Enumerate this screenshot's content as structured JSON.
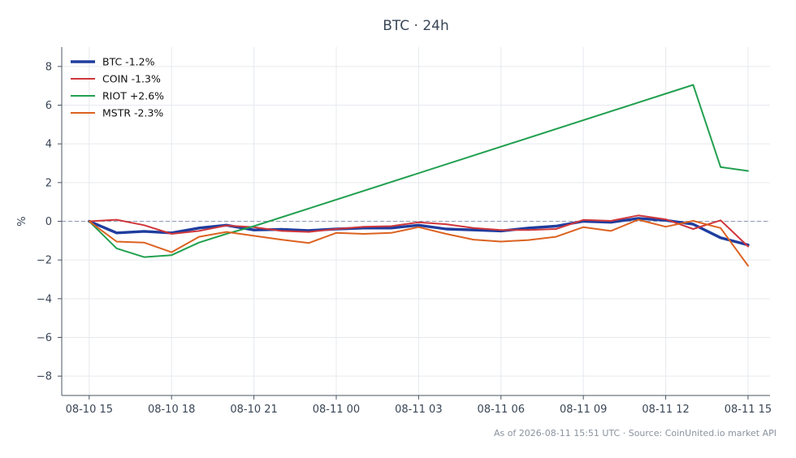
{
  "chart_data": {
    "type": "line",
    "title": "BTC · 24h",
    "ylabel": "%",
    "xlabel": "",
    "ylim": [
      -9,
      9
    ],
    "yticks": [
      -8,
      -6,
      -4,
      -2,
      0,
      2,
      4,
      6,
      8
    ],
    "ytick_labels": [
      "−8",
      "−6",
      "−4",
      "−2",
      "0",
      "2",
      "4",
      "6",
      "8"
    ],
    "x_range_hours": [
      -1,
      24.8
    ],
    "xticks": [
      {
        "h": 0,
        "label": "08-10 15"
      },
      {
        "h": 3,
        "label": "08-10 18"
      },
      {
        "h": 6,
        "label": "08-10 21"
      },
      {
        "h": 9,
        "label": "08-11 00"
      },
      {
        "h": 12,
        "label": "08-11 03"
      },
      {
        "h": 15,
        "label": "08-11 06"
      },
      {
        "h": 18,
        "label": "08-11 09"
      },
      {
        "h": 21,
        "label": "08-11 12"
      },
      {
        "h": 24,
        "label": "08-11 15"
      }
    ],
    "grid": true,
    "reference_line": {
      "y": 0,
      "style": "dashed",
      "color": "#8a9ab0"
    },
    "legend_position": "top-left",
    "series": [
      {
        "name": "BTC -1.2%",
        "color": "#1f3d9e",
        "width": 3.4,
        "points": [
          [
            0,
            0
          ],
          [
            1,
            -0.6
          ],
          [
            2,
            -0.52
          ],
          [
            3,
            -0.6
          ],
          [
            4,
            -0.35
          ],
          [
            5,
            -0.2
          ],
          [
            6,
            -0.45
          ],
          [
            7,
            -0.42
          ],
          [
            8,
            -0.48
          ],
          [
            9,
            -0.4
          ],
          [
            10,
            -0.35
          ],
          [
            11,
            -0.35
          ],
          [
            12,
            -0.2
          ],
          [
            13,
            -0.4
          ],
          [
            14,
            -0.45
          ],
          [
            15,
            -0.5
          ],
          [
            16,
            -0.35
          ],
          [
            17,
            -0.25
          ],
          [
            18,
            0
          ],
          [
            19,
            -0.05
          ],
          [
            20,
            0.15
          ],
          [
            21,
            0.05
          ],
          [
            22,
            -0.15
          ],
          [
            23,
            -0.85
          ],
          [
            24,
            -1.22
          ]
        ]
      },
      {
        "name": "COIN -1.3%",
        "color": "#d0373b",
        "width": 2,
        "points": [
          [
            0,
            0
          ],
          [
            1,
            0.08
          ],
          [
            2,
            -0.2
          ],
          [
            3,
            -0.65
          ],
          [
            4,
            -0.5
          ],
          [
            5,
            -0.22
          ],
          [
            6,
            -0.3
          ],
          [
            7,
            -0.5
          ],
          [
            8,
            -0.55
          ],
          [
            9,
            -0.4
          ],
          [
            10,
            -0.28
          ],
          [
            11,
            -0.25
          ],
          [
            12,
            -0.05
          ],
          [
            13,
            -0.15
          ],
          [
            14,
            -0.35
          ],
          [
            15,
            -0.45
          ],
          [
            16,
            -0.45
          ],
          [
            17,
            -0.4
          ],
          [
            18,
            0.07
          ],
          [
            19,
            0.02
          ],
          [
            20,
            0.3
          ],
          [
            21,
            0.1
          ],
          [
            22,
            -0.4
          ],
          [
            23,
            0.05
          ],
          [
            24,
            -1.3
          ]
        ]
      },
      {
        "name": "RIOT +2.6%",
        "color": "#22a050",
        "width": 2,
        "points": [
          [
            0,
            0
          ],
          [
            1,
            -1.4
          ],
          [
            2,
            -1.85
          ],
          [
            3,
            -1.75
          ],
          [
            4,
            -1.1
          ],
          [
            5,
            -0.65
          ],
          [
            6,
            -0.25
          ],
          [
            22,
            7.05
          ],
          [
            23,
            2.8
          ],
          [
            24,
            2.6
          ]
        ]
      },
      {
        "name": "MSTR -2.3%",
        "color": "#dc6220",
        "width": 2,
        "points": [
          [
            0,
            0
          ],
          [
            1,
            -1.05
          ],
          [
            2,
            -1.1
          ],
          [
            3,
            -1.6
          ],
          [
            4,
            -0.8
          ],
          [
            5,
            -0.55
          ],
          [
            6,
            -0.75
          ],
          [
            7,
            -0.95
          ],
          [
            8,
            -1.12
          ],
          [
            9,
            -0.6
          ],
          [
            10,
            -0.65
          ],
          [
            11,
            -0.6
          ],
          [
            12,
            -0.3
          ],
          [
            13,
            -0.65
          ],
          [
            14,
            -0.95
          ],
          [
            15,
            -1.05
          ],
          [
            16,
            -0.97
          ],
          [
            17,
            -0.8
          ],
          [
            18,
            -0.3
          ],
          [
            19,
            -0.5
          ],
          [
            20,
            0.08
          ],
          [
            21,
            -0.28
          ],
          [
            22,
            0.02
          ],
          [
            23,
            -0.35
          ],
          [
            24,
            -2.3
          ]
        ]
      }
    ]
  },
  "footer": {
    "note": "As of 2026-08-11 15:51 UTC · Source: CoinUnited.io market API"
  }
}
